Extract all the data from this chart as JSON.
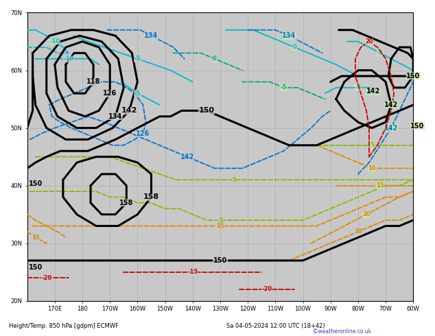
{
  "title_left": "Height/Temp. 850 hPa [gdpm] ECMWF",
  "title_right": "Sa 04-05-2024 12:00 UTC (18+42)",
  "watermark": "©weatheronline.co.uk",
  "bg_ocean": "#c8c8c8",
  "bg_land": "#c8e6b4",
  "grid_color": "#aaaaaa",
  "bottom_text_color": "#4444aa",
  "fig_width": 6.34,
  "fig_height": 4.9,
  "dpi": 100,
  "black_lw": 2.2,
  "thin_lw": 1.3,
  "colors": {
    "black": "#000000",
    "cyan": "#00bbcc",
    "blue_dash": "#0077cc",
    "green_dash": "#88bb00",
    "orange_dash": "#dd8800",
    "red_dash": "#cc0000",
    "teal": "#00aa88"
  },
  "xlim": [
    160,
    300
  ],
  "ylim": [
    20,
    70
  ],
  "xticks": [
    170,
    180,
    190,
    200,
    210,
    220,
    230,
    240,
    250,
    260,
    270,
    280,
    290,
    300
  ],
  "xtick_labels": [
    "170E",
    "180",
    "170W",
    "160W",
    "150W",
    "140W",
    "130W",
    "120W",
    "110W",
    "100W",
    "90W",
    "80W",
    "70W",
    "60W"
  ],
  "yticks": [
    20,
    30,
    40,
    50,
    60,
    70
  ],
  "ytick_labels": [
    "20N",
    "30N",
    "40N",
    "50N",
    "60N",
    "70N"
  ]
}
